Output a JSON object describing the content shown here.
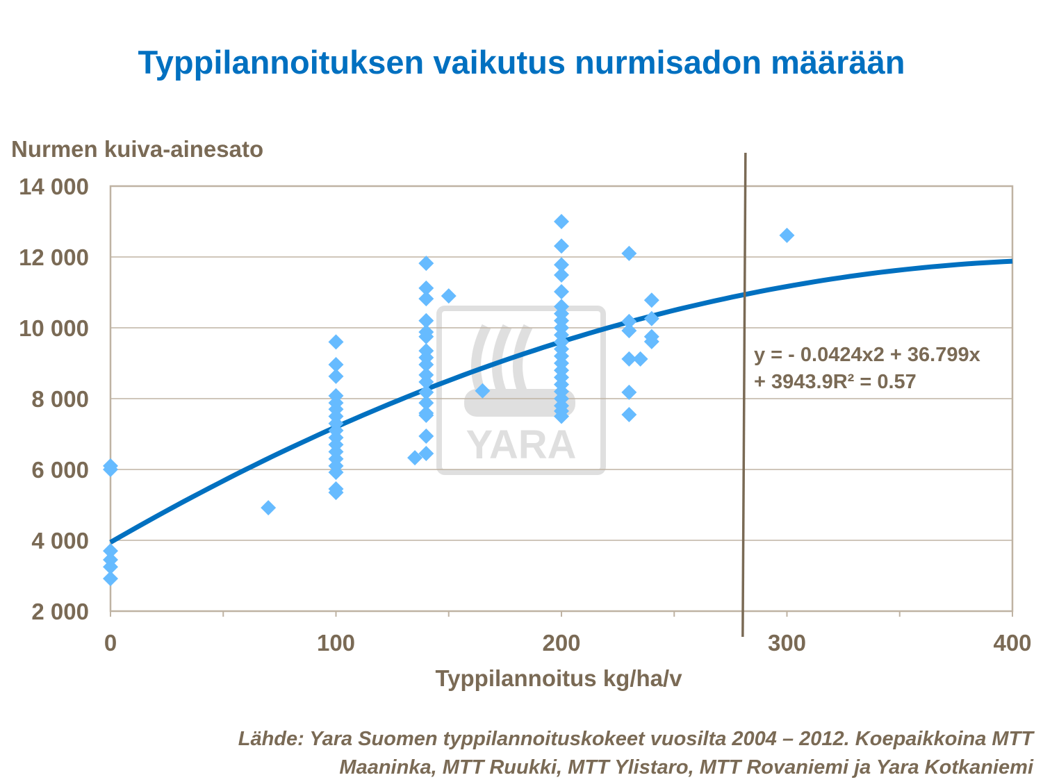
{
  "chart_data": {
    "type": "scatter",
    "title": "Typpilannoituksen vaikutus nurmisadon määrään",
    "xlabel": "Typpilannoitus kg/ha/v",
    "ylabel": "Nurmen kuiva-ainesato",
    "xlim": [
      0,
      400
    ],
    "ylim": [
      2000,
      14000
    ],
    "xticks": [
      0,
      100,
      200,
      300,
      400
    ],
    "xtick_labels": [
      "0",
      "100",
      "200",
      "300",
      "400"
    ],
    "yticks": [
      2000,
      4000,
      6000,
      8000,
      10000,
      12000,
      14000
    ],
    "ytick_labels": [
      "2 000",
      "4 000",
      "6 000",
      "8 000",
      "10 000",
      "12 000",
      "14 000"
    ],
    "grid": "horizontal",
    "marker_color": "#66bbff",
    "trend_color": "#0070c0",
    "points": [
      [
        0,
        6100
      ],
      [
        0,
        6000
      ],
      [
        0,
        3700
      ],
      [
        0,
        3450
      ],
      [
        0,
        3250
      ],
      [
        0,
        2920
      ],
      [
        70,
        4920
      ],
      [
        100,
        9600
      ],
      [
        100,
        8960
      ],
      [
        100,
        8630
      ],
      [
        100,
        8080
      ],
      [
        100,
        7880
      ],
      [
        100,
        7700
      ],
      [
        100,
        7500
      ],
      [
        100,
        7300
      ],
      [
        100,
        7100
      ],
      [
        100,
        6900
      ],
      [
        100,
        6700
      ],
      [
        100,
        6500
      ],
      [
        100,
        6300
      ],
      [
        100,
        6100
      ],
      [
        100,
        5920
      ],
      [
        100,
        5450
      ],
      [
        100,
        5350
      ],
      [
        135,
        6330
      ],
      [
        140,
        11820
      ],
      [
        140,
        11120
      ],
      [
        140,
        10820
      ],
      [
        140,
        10200
      ],
      [
        140,
        9880
      ],
      [
        140,
        9750
      ],
      [
        140,
        9350
      ],
      [
        140,
        9160
      ],
      [
        140,
        8960
      ],
      [
        140,
        8670
      ],
      [
        140,
        8470
      ],
      [
        140,
        8180
      ],
      [
        140,
        7880
      ],
      [
        140,
        7590
      ],
      [
        140,
        7530
      ],
      [
        140,
        6940
      ],
      [
        140,
        6450
      ],
      [
        150,
        10900
      ],
      [
        165,
        8220
      ],
      [
        200,
        13000
      ],
      [
        200,
        12310
      ],
      [
        200,
        11780
      ],
      [
        200,
        11490
      ],
      [
        200,
        11020
      ],
      [
        200,
        10600
      ],
      [
        200,
        10400
      ],
      [
        200,
        10200
      ],
      [
        200,
        10000
      ],
      [
        200,
        9800
      ],
      [
        200,
        9600
      ],
      [
        200,
        9400
      ],
      [
        200,
        9200
      ],
      [
        200,
        9000
      ],
      [
        200,
        8800
      ],
      [
        200,
        8600
      ],
      [
        200,
        8400
      ],
      [
        200,
        8200
      ],
      [
        200,
        8000
      ],
      [
        200,
        7800
      ],
      [
        200,
        7650
      ],
      [
        200,
        7500
      ],
      [
        230,
        12100
      ],
      [
        230,
        10180
      ],
      [
        230,
        9920
      ],
      [
        230,
        9120
      ],
      [
        230,
        8180
      ],
      [
        230,
        7550
      ],
      [
        235,
        9120
      ],
      [
        240,
        10780
      ],
      [
        240,
        10260
      ],
      [
        240,
        9750
      ],
      [
        240,
        9610
      ],
      [
        300,
        12610
      ]
    ],
    "trendline": {
      "type": "polynomial",
      "coefficients": [
        -0.0424,
        36.799,
        3943.9
      ],
      "r2": 0.57
    },
    "equation_line1": "y = - 0.0424x2  + 36.799x",
    "equation_line2": "+ 3943.9R² = 0.57",
    "vertical_line_x": 281,
    "vertical_line_color": "#7a6a55"
  },
  "source_line1": "Lähde: Yara Suomen typpilannoituskokeet vuosilta 2004 – 2012. Koepaikkoina MTT",
  "source_line2": "Maaninka, MTT Ruukki, MTT Ylistaro, MTT Rovaniemi ja Yara Kotkaniemi",
  "watermark": "YARA"
}
